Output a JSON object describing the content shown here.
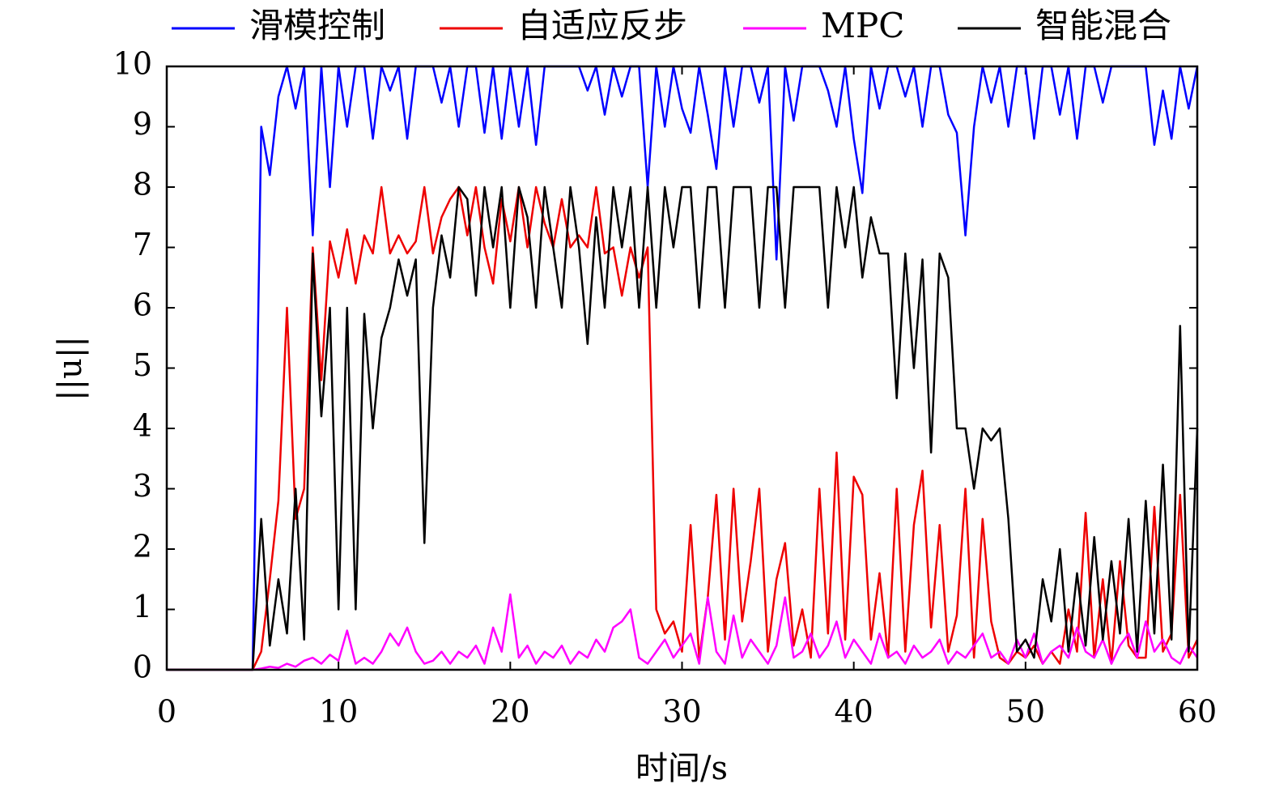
{
  "chart_data": {
    "type": "line",
    "xlabel": "时间/s",
    "ylabel": "||u||",
    "x": [
      0,
      0.5,
      1,
      1.5,
      2,
      2.5,
      3,
      3.5,
      4,
      4.5,
      5,
      5.5,
      6,
      6.5,
      7,
      7.5,
      8,
      8.5,
      9,
      9.5,
      10,
      10.5,
      11,
      11.5,
      12,
      12.5,
      13,
      13.5,
      14,
      14.5,
      15,
      15.5,
      16,
      16.5,
      17,
      17.5,
      18,
      18.5,
      19,
      19.5,
      20,
      20.5,
      21,
      21.5,
      22,
      22.5,
      23,
      23.5,
      24,
      24.5,
      25,
      25.5,
      26,
      26.5,
      27,
      27.5,
      28,
      28.5,
      29,
      29.5,
      30,
      30.5,
      31,
      31.5,
      32,
      32.5,
      33,
      33.5,
      34,
      34.5,
      35,
      35.5,
      36,
      36.5,
      37,
      37.5,
      38,
      38.5,
      39,
      39.5,
      40,
      40.5,
      41,
      41.5,
      42,
      42.5,
      43,
      43.5,
      44,
      44.5,
      45,
      45.5,
      46,
      46.5,
      47,
      47.5,
      48,
      48.5,
      49,
      49.5,
      50,
      50.5,
      51,
      51.5,
      52,
      52.5,
      53,
      53.5,
      54,
      54.5,
      55,
      55.5,
      56,
      56.5,
      57,
      57.5,
      58,
      58.5,
      59,
      59.5,
      60
    ],
    "series": [
      {
        "name": "滑模控制",
        "color": "#0000ff",
        "values": [
          0,
          0,
          0,
          0,
          0,
          0,
          0,
          0,
          0,
          0,
          0,
          9,
          8.2,
          9.5,
          10,
          9.3,
          10,
          7.2,
          10,
          8.0,
          10,
          9.0,
          10,
          10,
          8.8,
          10,
          9.6,
          10,
          8.8,
          10,
          10,
          10,
          9.4,
          10,
          9.0,
          10,
          10,
          8.9,
          10,
          8.8,
          10,
          9.0,
          10,
          8.7,
          10,
          10,
          10,
          10,
          10,
          9.6,
          10,
          9.2,
          10,
          9.5,
          10,
          10,
          8.0,
          10,
          9.0,
          10,
          9.3,
          8.9,
          10,
          9.2,
          8.3,
          10,
          9.0,
          10,
          10,
          9.4,
          10,
          6.8,
          10,
          9.1,
          10,
          10,
          10,
          9.6,
          9.0,
          10,
          8.8,
          7.9,
          10,
          9.3,
          10,
          10,
          9.5,
          10,
          9.0,
          10,
          10,
          9.2,
          8.9,
          7.2,
          9.0,
          10,
          9.4,
          10,
          9.0,
          10,
          10,
          8.8,
          10,
          10,
          9.2,
          10,
          8.8,
          10,
          10,
          9.4,
          10,
          10,
          10,
          10,
          10,
          8.7,
          9.6,
          8.8,
          10,
          9.3,
          10
        ]
      },
      {
        "name": "自适应反步",
        "color": "#ee0000",
        "values": [
          0,
          0,
          0,
          0,
          0,
          0,
          0,
          0,
          0,
          0,
          0,
          0.3,
          1.5,
          2.8,
          6.0,
          2.5,
          3.0,
          7.0,
          4.8,
          7.1,
          6.5,
          7.3,
          6.4,
          7.2,
          6.9,
          8.0,
          6.9,
          7.2,
          6.9,
          7.1,
          8.0,
          6.9,
          7.5,
          7.8,
          8.0,
          7.2,
          8.0,
          7.0,
          6.4,
          7.8,
          7.1,
          8.0,
          7.0,
          8.0,
          7.4,
          7.0,
          7.8,
          7.0,
          7.2,
          7.0,
          8.0,
          6.9,
          7.0,
          6.2,
          7.0,
          6.5,
          7.0,
          1.0,
          0.6,
          0.8,
          0.3,
          2.4,
          0.2,
          1.2,
          2.9,
          0.5,
          3.0,
          0.8,
          1.8,
          3.0,
          0.3,
          1.5,
          2.1,
          0.4,
          1.0,
          0.2,
          3.0,
          0.6,
          3.6,
          0.5,
          3.2,
          2.9,
          0.5,
          1.6,
          0.2,
          3.0,
          0.3,
          2.4,
          3.3,
          0.7,
          2.4,
          0.3,
          0.9,
          3.0,
          0.2,
          2.5,
          0.8,
          0.2,
          0.1,
          0.3,
          0.2,
          0.4,
          0.1,
          0.3,
          0.1,
          1.0,
          0.3,
          2.6,
          0.2,
          1.5,
          0.1,
          1.8,
          0.4,
          0.2,
          0.2,
          2.7,
          0.3,
          0.6,
          2.9,
          0.2,
          0.5
        ]
      },
      {
        "name": "MPC",
        "color": "#ff00ff",
        "values": [
          0,
          0,
          0,
          0,
          0,
          0,
          0,
          0,
          0,
          0,
          0,
          0.02,
          0.05,
          0.03,
          0.1,
          0.05,
          0.15,
          0.2,
          0.1,
          0.25,
          0.15,
          0.65,
          0.1,
          0.2,
          0.1,
          0.3,
          0.6,
          0.4,
          0.7,
          0.3,
          0.1,
          0.15,
          0.3,
          0.1,
          0.3,
          0.2,
          0.4,
          0.1,
          0.7,
          0.3,
          1.25,
          0.2,
          0.4,
          0.1,
          0.3,
          0.2,
          0.4,
          0.1,
          0.3,
          0.2,
          0.5,
          0.3,
          0.7,
          0.8,
          1.0,
          0.2,
          0.1,
          0.3,
          0.5,
          0.2,
          0.4,
          0.6,
          0.1,
          1.2,
          0.3,
          0.1,
          0.9,
          0.2,
          0.5,
          0.3,
          0.1,
          0.4,
          1.2,
          0.2,
          0.3,
          0.6,
          0.2,
          0.4,
          0.8,
          0.2,
          0.5,
          0.3,
          0.1,
          0.6,
          0.2,
          0.3,
          0.1,
          0.4,
          0.2,
          0.3,
          0.5,
          0.1,
          0.3,
          0.2,
          0.4,
          0.6,
          0.2,
          0.3,
          0.1,
          0.5,
          0.2,
          0.6,
          0.1,
          0.3,
          0.4,
          0.2,
          0.7,
          0.3,
          0.2,
          0.5,
          0.1,
          0.4,
          0.6,
          0.2,
          0.8,
          0.3,
          0.5,
          0.2,
          0.1,
          0.4,
          0.2
        ]
      },
      {
        "name": "智能混合",
        "color": "#000000",
        "values": [
          0,
          0,
          0,
          0,
          0,
          0,
          0,
          0,
          0,
          0,
          0,
          2.5,
          0.4,
          1.5,
          0.6,
          3.0,
          0.5,
          6.9,
          4.2,
          6.0,
          1.0,
          6.0,
          1.0,
          5.9,
          4.0,
          5.5,
          6.0,
          6.8,
          6.2,
          6.8,
          2.1,
          6.0,
          7.2,
          6.5,
          8.0,
          7.8,
          6.2,
          8.0,
          7.0,
          8.0,
          6.0,
          8.0,
          7.5,
          6.0,
          8.0,
          7.0,
          6.0,
          8.0,
          7.0,
          5.4,
          7.5,
          6.0,
          8.0,
          7.0,
          8.0,
          6.0,
          8.0,
          6.0,
          8.0,
          7.0,
          8.0,
          8.0,
          6.0,
          8.0,
          8.0,
          6.0,
          8.0,
          8.0,
          8.0,
          6.0,
          8.0,
          8.0,
          6.0,
          8.0,
          8.0,
          8.0,
          8.0,
          6.0,
          8.0,
          7.0,
          8.0,
          6.5,
          7.5,
          6.9,
          6.9,
          4.5,
          6.9,
          5.0,
          6.8,
          3.6,
          6.9,
          6.5,
          4.0,
          4.0,
          3.0,
          4.0,
          3.8,
          4.0,
          2.5,
          0.3,
          0.5,
          0.2,
          1.5,
          0.8,
          2.0,
          0.3,
          1.6,
          0.4,
          2.2,
          0.5,
          1.8,
          0.6,
          2.5,
          0.3,
          2.8,
          0.6,
          3.4,
          0.5,
          5.7,
          0.3,
          4.0
        ]
      }
    ],
    "xlim": [
      0,
      60
    ],
    "xticks": [
      0,
      10,
      20,
      30,
      40,
      50,
      60
    ],
    "ylim": [
      0,
      10
    ],
    "yticks": [
      0,
      1,
      2,
      3,
      4,
      5,
      6,
      7,
      8,
      9,
      10
    ],
    "grid": false,
    "legend": "top"
  }
}
